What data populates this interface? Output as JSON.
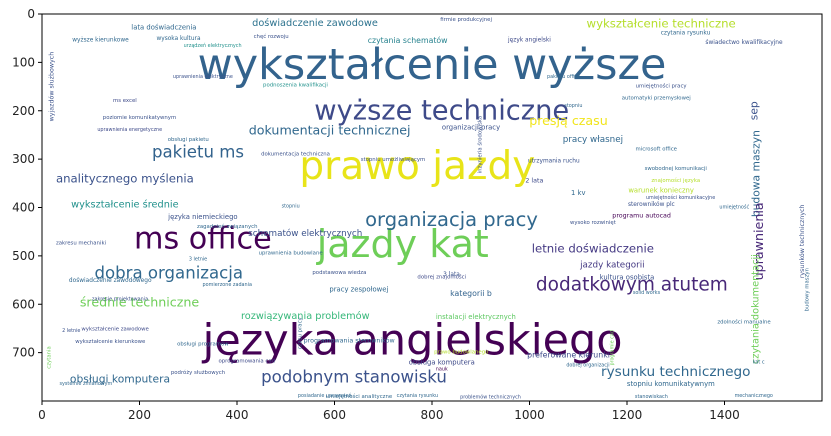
{
  "chart_data": {
    "type": "wordcloud",
    "title": "",
    "xlabel": "",
    "ylabel": "",
    "xlim": [
      0,
      1600
    ],
    "ylim": [
      800,
      0
    ],
    "xticks": [
      0,
      200,
      400,
      600,
      800,
      1000,
      1200,
      1400
    ],
    "yticks": [
      0,
      100,
      200,
      300,
      400,
      500,
      600,
      700
    ],
    "grid": false,
    "colormap": "viridis",
    "words": [
      {
        "text": "wykształcenie wyższe",
        "x": 800,
        "y": 105,
        "size": 88,
        "rot": 0,
        "color": "#33638d"
      },
      {
        "text": "języka angielskiego",
        "x": 760,
        "y": 675,
        "size": 88,
        "rot": 0,
        "color": "#440154"
      },
      {
        "text": "prawo jazdy",
        "x": 770,
        "y": 315,
        "size": 80,
        "rot": 0,
        "color": "#e8e419"
      },
      {
        "text": "jazdy kat",
        "x": 740,
        "y": 475,
        "size": 78,
        "rot": 0,
        "color": "#6ece58"
      },
      {
        "text": "ms office",
        "x": 330,
        "y": 465,
        "size": 62,
        "rot": 0,
        "color": "#440154"
      },
      {
        "text": "wyższe techniczne",
        "x": 820,
        "y": 200,
        "size": 56,
        "rot": 0,
        "color": "#3e4a89"
      },
      {
        "text": "organizacja pracy",
        "x": 840,
        "y": 425,
        "size": 40,
        "rot": 0,
        "color": "#31688e"
      },
      {
        "text": "dodatkowym atutem",
        "x": 1210,
        "y": 560,
        "size": 38,
        "rot": 0,
        "color": "#482878"
      },
      {
        "text": "podobnym stanowisku",
        "x": 640,
        "y": 750,
        "size": 34,
        "rot": 0,
        "color": "#3b528b"
      },
      {
        "text": "dobra organizacja",
        "x": 260,
        "y": 535,
        "size": 34,
        "rot": 0,
        "color": "#31688e"
      },
      {
        "text": "pakietu ms",
        "x": 320,
        "y": 285,
        "size": 34,
        "rot": 0,
        "color": "#33638d"
      },
      {
        "text": "rysunku technicznego",
        "x": 1300,
        "y": 740,
        "size": 28,
        "rot": 0,
        "color": "#31688e"
      },
      {
        "text": "dokumentacji technicznej",
        "x": 590,
        "y": 240,
        "size": 26,
        "rot": 0,
        "color": "#31688e"
      },
      {
        "text": "średnie techniczne",
        "x": 200,
        "y": 595,
        "size": 26,
        "rot": 0,
        "color": "#6ece58"
      },
      {
        "text": "analitycznego myślenia",
        "x": 170,
        "y": 340,
        "size": 24,
        "rot": 0,
        "color": "#3b528b"
      },
      {
        "text": "wykształcenie techniczne",
        "x": 1270,
        "y": 20,
        "size": 24,
        "rot": 0,
        "color": "#b5de2b"
      },
      {
        "text": "letnie doświadczenie",
        "x": 1130,
        "y": 485,
        "size": 24,
        "rot": 0,
        "color": "#443983"
      },
      {
        "text": "obsługi komputera",
        "x": 160,
        "y": 755,
        "size": 22,
        "rot": 0,
        "color": "#31688e"
      },
      {
        "text": "presją czasu",
        "x": 1080,
        "y": 220,
        "size": 26,
        "rot": 0,
        "color": "#f1e51d"
      },
      {
        "text": "doświadczenie zawodowe",
        "x": 560,
        "y": 20,
        "size": 20,
        "rot": 0,
        "color": "#2c728e"
      },
      {
        "text": "wykształcenie średnie",
        "x": 170,
        "y": 395,
        "size": 20,
        "rot": 0,
        "color": "#21918c"
      },
      {
        "text": "rozwiązywania problemów",
        "x": 540,
        "y": 625,
        "size": 20,
        "rot": 0,
        "color": "#35b779"
      },
      {
        "text": "schematów elektrycznych",
        "x": 540,
        "y": 455,
        "size": 18,
        "rot": 0,
        "color": "#3b528b"
      },
      {
        "text": "sep",
        "x": 1460,
        "y": 200,
        "size": 22,
        "rot": 270,
        "color": "#3b528b"
      },
      {
        "text": "budowa maszyn",
        "x": 1465,
        "y": 330,
        "size": 22,
        "rot": 270,
        "color": "#31688e"
      },
      {
        "text": "uprawnienia",
        "x": 1470,
        "y": 470,
        "size": 26,
        "rot": 270,
        "color": "#482878"
      },
      {
        "text": "czytania dokumentacji",
        "x": 1465,
        "y": 610,
        "size": 20,
        "rot": 270,
        "color": "#6ece58"
      },
      {
        "text": "czytania schematów",
        "x": 750,
        "y": 55,
        "size": 16,
        "rot": 0,
        "color": "#26828e"
      },
      {
        "text": "jazdy kategorii",
        "x": 1170,
        "y": 520,
        "size": 18,
        "rot": 0,
        "color": "#443983"
      },
      {
        "text": "pracy własnej",
        "x": 1130,
        "y": 260,
        "size": 18,
        "rot": 0,
        "color": "#31688e"
      },
      {
        "text": "języka niemieckiego",
        "x": 330,
        "y": 420,
        "size": 14,
        "rot": 0,
        "color": "#3b528b"
      },
      {
        "text": "kategorii b",
        "x": 880,
        "y": 578,
        "size": 16,
        "rot": 0,
        "color": "#33638d"
      },
      {
        "text": "preferowane kierunki",
        "x": 1080,
        "y": 705,
        "size": 16,
        "rot": 0,
        "color": "#3e4a89"
      },
      {
        "text": "lata doświadczenia",
        "x": 250,
        "y": 28,
        "size": 14,
        "rot": 0,
        "color": "#31688e"
      },
      {
        "text": "organizacji pracy",
        "x": 880,
        "y": 235,
        "size": 14,
        "rot": 0,
        "color": "#3b528b"
      },
      {
        "text": "obsługa komputera",
        "x": 820,
        "y": 720,
        "size": 14,
        "rot": 0,
        "color": "#3e4a89"
      },
      {
        "text": "programowania sterowników",
        "x": 630,
        "y": 676,
        "size": 13,
        "rot": 0,
        "color": "#31688e"
      },
      {
        "text": "kultura osobista",
        "x": 1200,
        "y": 545,
        "size": 14,
        "rot": 0,
        "color": "#3b528b"
      },
      {
        "text": "stopniu komunikatywnym",
        "x": 1290,
        "y": 765,
        "size": 14,
        "rot": 0,
        "color": "#31688e"
      },
      {
        "text": "warunek konieczny",
        "x": 1270,
        "y": 365,
        "size": 14,
        "rot": 0,
        "color": "#b5de2b"
      },
      {
        "text": "programu autocad",
        "x": 1230,
        "y": 418,
        "size": 13,
        "rot": 0,
        "color": "#440154"
      },
      {
        "text": "pracy zespołowej",
        "x": 650,
        "y": 570,
        "size": 14,
        "rot": 0,
        "color": "#31688e"
      },
      {
        "text": "instalacji elektrycznych",
        "x": 890,
        "y": 626,
        "size": 14,
        "rot": 0,
        "color": "#5ec962"
      },
      {
        "text": "doświadczenie zawodowego",
        "x": 140,
        "y": 552,
        "size": 12,
        "rot": 0,
        "color": "#31688e"
      },
      {
        "text": "wyższe kierunkowe",
        "x": 120,
        "y": 55,
        "size": 12,
        "rot": 0,
        "color": "#31688e"
      },
      {
        "text": "firmie produkcyjnej",
        "x": 870,
        "y": 12,
        "size": 11,
        "rot": 0,
        "color": "#3b528b"
      },
      {
        "text": "język angielski",
        "x": 1000,
        "y": 55,
        "size": 12,
        "rot": 0,
        "color": "#3e4a89"
      },
      {
        "text": "czytania rysunku",
        "x": 1320,
        "y": 40,
        "size": 12,
        "rot": 0,
        "color": "#31688e"
      },
      {
        "text": "świadectwo kwalifikacyjne",
        "x": 1440,
        "y": 60,
        "size": 12,
        "rot": 0,
        "color": "#3b528b"
      },
      {
        "text": "wysoka kultura",
        "x": 280,
        "y": 52,
        "size": 12,
        "rot": 0,
        "color": "#31688e"
      },
      {
        "text": "chęć rozwoju",
        "x": 470,
        "y": 48,
        "size": 11,
        "rot": 0,
        "color": "#3b528b"
      },
      {
        "text": "podnoszenia kwalifikacji",
        "x": 520,
        "y": 148,
        "size": 11,
        "rot": 0,
        "color": "#21918c"
      },
      {
        "text": "umiejętności pracy",
        "x": 1270,
        "y": 150,
        "size": 11,
        "rot": 0,
        "color": "#3b528b"
      },
      {
        "text": "automatyki przemysłowej",
        "x": 1260,
        "y": 175,
        "size": 11,
        "rot": 0,
        "color": "#31688e"
      },
      {
        "text": "ms excel",
        "x": 170,
        "y": 180,
        "size": 11,
        "rot": 0,
        "color": "#3e4a89"
      },
      {
        "text": "poziomie komunikatywnym",
        "x": 200,
        "y": 215,
        "size": 11,
        "rot": 0,
        "color": "#3b528b"
      },
      {
        "text": "obsługi pakietu",
        "x": 300,
        "y": 260,
        "size": 11,
        "rot": 0,
        "color": "#31688e"
      },
      {
        "text": "utrzymania ruchu",
        "x": 1050,
        "y": 305,
        "size": 12,
        "rot": 0,
        "color": "#3b528b"
      },
      {
        "text": "swobodnej komunikacji",
        "x": 1300,
        "y": 320,
        "size": 11,
        "rot": 0,
        "color": "#31688e"
      },
      {
        "text": "stopniu umożliwiającym",
        "x": 720,
        "y": 302,
        "size": 11,
        "rot": 0,
        "color": "#3b528b"
      },
      {
        "text": "dokumentacja techniczna",
        "x": 520,
        "y": 290,
        "size": 11,
        "rot": 0,
        "color": "#3b528b"
      },
      {
        "text": "zagadnień związanych",
        "x": 380,
        "y": 440,
        "size": 11,
        "rot": 0,
        "color": "#31688e"
      },
      {
        "text": "uprawnienia budowlane",
        "x": 510,
        "y": 495,
        "size": 11,
        "rot": 0,
        "color": "#31688e"
      },
      {
        "text": "podstawowa wiedza",
        "x": 610,
        "y": 535,
        "size": 11,
        "rot": 0,
        "color": "#3b528b"
      },
      {
        "text": "dobrej znajomości",
        "x": 820,
        "y": 545,
        "size": 11,
        "rot": 0,
        "color": "#3e4a89"
      },
      {
        "text": "pomierzone zadania",
        "x": 380,
        "y": 560,
        "size": 10,
        "rot": 0,
        "color": "#31688e"
      },
      {
        "text": "zakresu mechaniki",
        "x": 80,
        "y": 474,
        "size": 11,
        "rot": 0,
        "color": "#3b528b"
      },
      {
        "text": "wykształcenie zawodowe",
        "x": 150,
        "y": 652,
        "size": 11,
        "rot": 0,
        "color": "#3e4a89"
      },
      {
        "text": "wykształcenie kierunkowe",
        "x": 140,
        "y": 678,
        "size": 11,
        "rot": 0,
        "color": "#3b528b"
      },
      {
        "text": "obsługi programów",
        "x": 330,
        "y": 683,
        "size": 11,
        "rot": 0,
        "color": "#31688e"
      },
      {
        "text": "oprogramowania cad",
        "x": 420,
        "y": 718,
        "size": 11,
        "rot": 0,
        "color": "#3e4a89"
      },
      {
        "text": "podróży służbowych",
        "x": 320,
        "y": 742,
        "size": 11,
        "rot": 0,
        "color": "#3b528b"
      },
      {
        "text": "umiejętności analityczne",
        "x": 650,
        "y": 792,
        "size": 11,
        "rot": 0,
        "color": "#31688e"
      },
      {
        "text": "posiadanie uprawnień",
        "x": 580,
        "y": 790,
        "size": 10,
        "rot": 0,
        "color": "#31688e"
      },
      {
        "text": "czytania rysunku",
        "x": 770,
        "y": 790,
        "size": 10,
        "rot": 0,
        "color": "#31688e"
      },
      {
        "text": "problemów technicznych",
        "x": 920,
        "y": 793,
        "size": 10,
        "rot": 0,
        "color": "#3b528b"
      },
      {
        "text": "stanowiskach",
        "x": 1250,
        "y": 792,
        "size": 10,
        "rot": 0,
        "color": "#31688e"
      },
      {
        "text": "prawo budowlanego",
        "x": 860,
        "y": 700,
        "size": 11,
        "rot": 0,
        "color": "#b5de2b"
      },
      {
        "text": "dobrej organizacji",
        "x": 1120,
        "y": 727,
        "size": 10,
        "rot": 0,
        "color": "#31688e"
      },
      {
        "text": "programie cad",
        "x": 1170,
        "y": 690,
        "size": 10,
        "rot": 270,
        "color": "#6ece58"
      },
      {
        "text": "wysoko rozwinięt",
        "x": 1130,
        "y": 432,
        "size": 11,
        "rot": 0,
        "color": "#3b528b"
      },
      {
        "text": "2 lata",
        "x": 1010,
        "y": 345,
        "size": 13,
        "rot": 0,
        "color": "#3e4a89"
      },
      {
        "text": "1 kv",
        "x": 1100,
        "y": 370,
        "size": 14,
        "rot": 0,
        "color": "#31688e"
      },
      {
        "text": "3 lata",
        "x": 840,
        "y": 540,
        "size": 12,
        "rot": 0,
        "color": "#3b528b"
      },
      {
        "text": "solid works",
        "x": 1240,
        "y": 577,
        "size": 10,
        "rot": 0,
        "color": "#31688e"
      },
      {
        "text": "mechanicznego",
        "x": 1460,
        "y": 790,
        "size": 10,
        "rot": 0,
        "color": "#31688e"
      },
      {
        "text": "nauk",
        "x": 820,
        "y": 735,
        "size": 10,
        "rot": 0,
        "color": "#440154"
      },
      {
        "text": "stopniu",
        "x": 510,
        "y": 398,
        "size": 10,
        "rot": 0,
        "color": "#31688e"
      },
      {
        "text": "rysunków technicznych",
        "x": 1560,
        "y": 470,
        "size": 13,
        "rot": 270,
        "color": "#3b528b"
      },
      {
        "text": "budowy maszyn",
        "x": 1570,
        "y": 570,
        "size": 11,
        "rot": 270,
        "color": "#31688e"
      },
      {
        "text": "wyjazdów służbowych",
        "x": 20,
        "y": 150,
        "size": 13,
        "rot": 270,
        "color": "#3b528b"
      },
      {
        "text": "czytania",
        "x": 15,
        "y": 710,
        "size": 11,
        "rot": 270,
        "color": "#6ece58"
      },
      {
        "text": "inżynieria środowiska",
        "x": 900,
        "y": 270,
        "size": 11,
        "rot": 270,
        "color": "#3b528b"
      },
      {
        "text": "czasu pracy",
        "x": 530,
        "y": 660,
        "size": 11,
        "rot": 270,
        "color": "#31688e"
      },
      {
        "text": "znajomości języka",
        "x": 1300,
        "y": 345,
        "size": 11,
        "rot": 0,
        "color": "#b5de2b"
      },
      {
        "text": "umiejętności komunikacyjne",
        "x": 1310,
        "y": 380,
        "size": 10,
        "rot": 0,
        "color": "#3b528b"
      },
      {
        "text": "pakietu office",
        "x": 1070,
        "y": 130,
        "size": 10,
        "rot": 0,
        "color": "#31688e"
      },
      {
        "text": "microsoft office",
        "x": 1260,
        "y": 280,
        "size": 11,
        "rot": 0,
        "color": "#31688e"
      },
      {
        "text": "3 letnie",
        "x": 320,
        "y": 508,
        "size": 10,
        "rot": 0,
        "color": "#31688e"
      },
      {
        "text": "2 letnie",
        "x": 60,
        "y": 655,
        "size": 10,
        "rot": 0,
        "color": "#3b528b"
      },
      {
        "text": "stopniu",
        "x": 1090,
        "y": 190,
        "size": 10,
        "rot": 0,
        "color": "#31688e"
      },
      {
        "text": "uprawnienia elektryczne",
        "x": 330,
        "y": 130,
        "size": 10,
        "rot": 0,
        "color": "#3b528b"
      },
      {
        "text": "uprawnienia energetyczne",
        "x": 180,
        "y": 240,
        "size": 10,
        "rot": 0,
        "color": "#3e4a89"
      },
      {
        "text": "urządzeń elektrycznych",
        "x": 350,
        "y": 66,
        "size": 10,
        "rot": 0,
        "color": "#21918c"
      },
      {
        "text": "sterowników plc",
        "x": 1250,
        "y": 395,
        "size": 12,
        "rot": 0,
        "color": "#3b528b"
      },
      {
        "text": "systemie zmianowym",
        "x": 90,
        "y": 765,
        "size": 10,
        "rot": 0,
        "color": "#31688e"
      },
      {
        "text": "zakresie projektowania",
        "x": 160,
        "y": 590,
        "size": 10,
        "rot": 0,
        "color": "#3b528b"
      },
      {
        "text": "umiejętność",
        "x": 1420,
        "y": 400,
        "size": 10,
        "rot": 0,
        "color": "#31688e"
      },
      {
        "text": "kat c",
        "x": 1470,
        "y": 720,
        "size": 10,
        "rot": 0,
        "color": "#31688e"
      },
      {
        "text": "zdolności manualne",
        "x": 1440,
        "y": 638,
        "size": 11,
        "rot": 0,
        "color": "#31688e"
      }
    ]
  }
}
